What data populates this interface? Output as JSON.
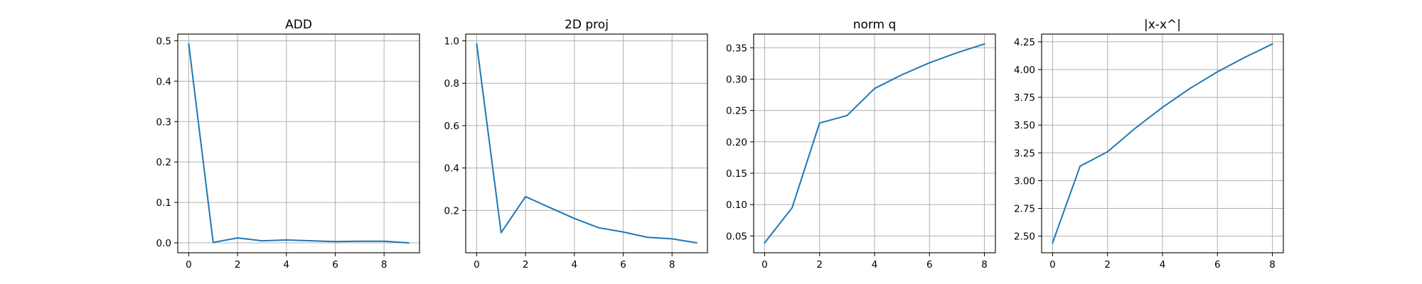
{
  "figure": {
    "colors": {
      "line": "#1f77b4",
      "grid": "#b0b0b0",
      "axes": "#000000",
      "background": "#ffffff"
    }
  },
  "chart_data": [
    {
      "type": "line",
      "title": "ADD",
      "xlabel": "",
      "ylabel": "",
      "grid": true,
      "x": [
        0,
        1,
        2,
        3,
        4,
        5,
        6,
        7,
        8,
        9
      ],
      "series": [
        {
          "values": [
            0.492,
            0.001,
            0.012,
            0.005,
            0.007,
            0.005,
            0.003,
            0.004,
            0.004,
            0.0
          ]
        }
      ],
      "xlim": [
        -0.45,
        9.45
      ],
      "ylim": [
        -0.0246,
        0.5166
      ],
      "xticks": [
        0,
        2,
        4,
        6,
        8
      ],
      "xtick_labels": [
        "0",
        "2",
        "4",
        "6",
        "8"
      ],
      "yticks": [
        0.0,
        0.1,
        0.2,
        0.3,
        0.4,
        0.5
      ],
      "ytick_labels": [
        "0.0",
        "0.1",
        "0.2",
        "0.3",
        "0.4",
        "0.5"
      ]
    },
    {
      "type": "line",
      "title": "2D proj",
      "xlabel": "",
      "ylabel": "",
      "grid": true,
      "x": [
        0,
        1,
        2,
        3,
        4,
        5,
        6,
        7,
        8,
        9
      ],
      "series": [
        {
          "values": [
            0.985,
            0.095,
            0.265,
            0.213,
            0.162,
            0.118,
            0.098,
            0.073,
            0.066,
            0.047
          ]
        }
      ],
      "xlim": [
        -0.45,
        9.45
      ],
      "ylim": [
        0.0001,
        1.0319
      ],
      "xticks": [
        0,
        2,
        4,
        6,
        8
      ],
      "xtick_labels": [
        "0",
        "2",
        "4",
        "6",
        "8"
      ],
      "yticks": [
        0.2,
        0.4,
        0.6,
        0.8,
        1.0
      ],
      "ytick_labels": [
        "0.2",
        "0.4",
        "0.6",
        "0.8",
        "1.0"
      ]
    },
    {
      "type": "line",
      "title": "norm q",
      "xlabel": "",
      "ylabel": "",
      "grid": true,
      "x": [
        0,
        1,
        2,
        3,
        4,
        5,
        6,
        7,
        8
      ],
      "series": [
        {
          "values": [
            0.039,
            0.095,
            0.23,
            0.242,
            0.285,
            0.307,
            0.326,
            0.342,
            0.356
          ]
        }
      ],
      "xlim": [
        -0.4,
        8.4
      ],
      "ylim": [
        0.0232,
        0.3718
      ],
      "xticks": [
        0,
        2,
        4,
        6,
        8
      ],
      "xtick_labels": [
        "0",
        "2",
        "4",
        "6",
        "8"
      ],
      "yticks": [
        0.05,
        0.1,
        0.15,
        0.2,
        0.25,
        0.3,
        0.35
      ],
      "ytick_labels": [
        "0.05",
        "0.10",
        "0.15",
        "0.20",
        "0.25",
        "0.30",
        "0.35"
      ]
    },
    {
      "type": "line",
      "title": "|x-x^|",
      "xlabel": "",
      "ylabel": "",
      "grid": true,
      "x": [
        0,
        1,
        2,
        3,
        4,
        5,
        6,
        7,
        8
      ],
      "series": [
        {
          "values": [
            2.44,
            3.13,
            3.26,
            3.47,
            3.66,
            3.83,
            3.98,
            4.11,
            4.23
          ]
        }
      ],
      "xlim": [
        -0.4,
        8.4
      ],
      "ylim": [
        2.3505,
        4.3195
      ],
      "xticks": [
        0,
        2,
        4,
        6,
        8
      ],
      "xtick_labels": [
        "0",
        "2",
        "4",
        "6",
        "8"
      ],
      "yticks": [
        2.5,
        2.75,
        3.0,
        3.25,
        3.5,
        3.75,
        4.0,
        4.25
      ],
      "ytick_labels": [
        "2.50",
        "2.75",
        "3.00",
        "3.25",
        "3.50",
        "3.75",
        "4.00",
        "4.25"
      ]
    }
  ]
}
